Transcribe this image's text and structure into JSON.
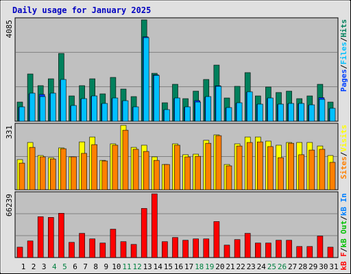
{
  "title": "Daily usage for January 2025",
  "separator": "/",
  "categories": [
    "1",
    "2",
    "3",
    "4",
    "5",
    "6",
    "7",
    "8",
    "9",
    "10",
    "11",
    "12",
    "13",
    "14",
    "15",
    "16",
    "17",
    "18",
    "19",
    "20",
    "21",
    "22",
    "23",
    "24",
    "25",
    "26",
    "27",
    "28",
    "29",
    "30",
    "31"
  ],
  "weekend_color": "#008040",
  "weekend_indices": [
    3,
    4,
    10,
    11,
    17,
    18,
    24,
    25
  ],
  "chart_data": [
    {
      "type": "bar",
      "ylim": [
        0,
        4085
      ],
      "yticks": [
        4085
      ],
      "series": [
        {
          "name": "Hits",
          "color": "#00805c",
          "values": [
            773,
            1905,
            1435,
            1711,
            2733,
            1021,
            1435,
            1711,
            1104,
            1767,
            1297,
            994,
            4085,
            1932,
            745,
            1490,
            911,
            1214,
            1684,
            2263,
            938,
            1408,
            1960,
            1021,
            1380,
            1159,
            1214,
            911,
            1021,
            1490,
            773
          ]
        },
        {
          "name": "Pages",
          "color": "#0040ff",
          "values": [
            560,
            1100,
            1080,
            1100,
            1650,
            610,
            890,
            1000,
            700,
            910,
            810,
            560,
            3400,
            1870,
            450,
            910,
            560,
            830,
            970,
            1430,
            530,
            720,
            1160,
            670,
            910,
            670,
            700,
            700,
            640,
            950,
            500
          ]
        },
        {
          "name": "Files",
          "color": "#00c0ff",
          "values": [
            580,
            1132,
            994,
            1132,
            1684,
            635,
            911,
            1021,
            718,
            938,
            828,
            580,
            3368,
            1849,
            469,
            938,
            580,
            773,
            994,
            1408,
            552,
            745,
            1187,
            690,
            938,
            690,
            718,
            718,
            662,
            883,
            524
          ]
        }
      ]
    },
    {
      "type": "bar",
      "ylim": [
        0,
        331
      ],
      "yticks": [
        331
      ],
      "series": [
        {
          "name": "Visits",
          "color": "#ffff00",
          "values": [
            155,
            243,
            176,
            165,
            215,
            169,
            246,
            271,
            151,
            236,
            331,
            218,
            229,
            169,
            130,
            236,
            180,
            183,
            254,
            282,
            130,
            236,
            271,
            271,
            250,
            229,
            243,
            243,
            243,
            225,
            176
          ]
        },
        {
          "name": "Sites",
          "color": "#ff8000",
          "values": [
            137,
            218,
            169,
            158,
            211,
            169,
            187,
            232,
            148,
            229,
            306,
            208,
            197,
            151,
            130,
            229,
            169,
            172,
            239,
            278,
            123,
            225,
            243,
            246,
            222,
            165,
            239,
            180,
            204,
            208,
            141
          ]
        }
      ]
    },
    {
      "type": "bar",
      "ylim": [
        0,
        66239
      ],
      "yticks": [
        66239
      ],
      "series": [
        {
          "name": "kB F",
          "color": "#ff0000",
          "values": [
            10800,
            17280,
            42480,
            41760,
            46080,
            15840,
            25200,
            19440,
            15120,
            29520,
            16560,
            13680,
            51120,
            66239,
            16560,
            20880,
            18000,
            19440,
            19440,
            37440,
            12960,
            18720,
            25200,
            15120,
            15120,
            18000,
            18000,
            11520,
            11520,
            22320,
            10800
          ]
        }
      ],
      "legend_only": [
        {
          "name": "kB Out",
          "color": "#00c000"
        },
        {
          "name": "kB In",
          "color": "#0080ff"
        }
      ]
    }
  ]
}
